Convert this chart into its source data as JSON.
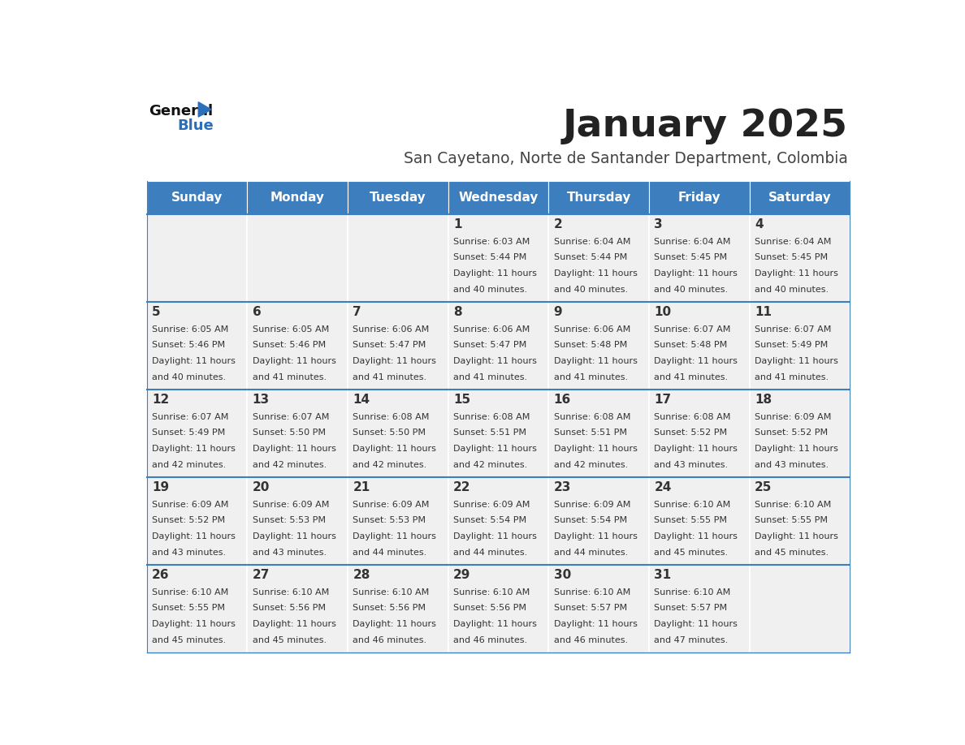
{
  "title": "January 2025",
  "subtitle": "San Cayetano, Norte de Santander Department, Colombia",
  "days_of_week": [
    "Sunday",
    "Monday",
    "Tuesday",
    "Wednesday",
    "Thursday",
    "Friday",
    "Saturday"
  ],
  "header_bg": "#3d7ebf",
  "header_text_color": "#ffffff",
  "cell_bg_light": "#f0f0f0",
  "cell_bg_white": "#ffffff",
  "cell_border_color": "#3d7ebf",
  "title_color": "#222222",
  "subtitle_color": "#444444",
  "text_color": "#333333",
  "calendar": [
    [
      null,
      null,
      null,
      {
        "day": 1,
        "sunrise": "6:03 AM",
        "sunset": "5:44 PM",
        "daylight_hours": 11,
        "daylight_minutes": 40
      },
      {
        "day": 2,
        "sunrise": "6:04 AM",
        "sunset": "5:44 PM",
        "daylight_hours": 11,
        "daylight_minutes": 40
      },
      {
        "day": 3,
        "sunrise": "6:04 AM",
        "sunset": "5:45 PM",
        "daylight_hours": 11,
        "daylight_minutes": 40
      },
      {
        "day": 4,
        "sunrise": "6:04 AM",
        "sunset": "5:45 PM",
        "daylight_hours": 11,
        "daylight_minutes": 40
      }
    ],
    [
      {
        "day": 5,
        "sunrise": "6:05 AM",
        "sunset": "5:46 PM",
        "daylight_hours": 11,
        "daylight_minutes": 40
      },
      {
        "day": 6,
        "sunrise": "6:05 AM",
        "sunset": "5:46 PM",
        "daylight_hours": 11,
        "daylight_minutes": 41
      },
      {
        "day": 7,
        "sunrise": "6:06 AM",
        "sunset": "5:47 PM",
        "daylight_hours": 11,
        "daylight_minutes": 41
      },
      {
        "day": 8,
        "sunrise": "6:06 AM",
        "sunset": "5:47 PM",
        "daylight_hours": 11,
        "daylight_minutes": 41
      },
      {
        "day": 9,
        "sunrise": "6:06 AM",
        "sunset": "5:48 PM",
        "daylight_hours": 11,
        "daylight_minutes": 41
      },
      {
        "day": 10,
        "sunrise": "6:07 AM",
        "sunset": "5:48 PM",
        "daylight_hours": 11,
        "daylight_minutes": 41
      },
      {
        "day": 11,
        "sunrise": "6:07 AM",
        "sunset": "5:49 PM",
        "daylight_hours": 11,
        "daylight_minutes": 41
      }
    ],
    [
      {
        "day": 12,
        "sunrise": "6:07 AM",
        "sunset": "5:49 PM",
        "daylight_hours": 11,
        "daylight_minutes": 42
      },
      {
        "day": 13,
        "sunrise": "6:07 AM",
        "sunset": "5:50 PM",
        "daylight_hours": 11,
        "daylight_minutes": 42
      },
      {
        "day": 14,
        "sunrise": "6:08 AM",
        "sunset": "5:50 PM",
        "daylight_hours": 11,
        "daylight_minutes": 42
      },
      {
        "day": 15,
        "sunrise": "6:08 AM",
        "sunset": "5:51 PM",
        "daylight_hours": 11,
        "daylight_minutes": 42
      },
      {
        "day": 16,
        "sunrise": "6:08 AM",
        "sunset": "5:51 PM",
        "daylight_hours": 11,
        "daylight_minutes": 42
      },
      {
        "day": 17,
        "sunrise": "6:08 AM",
        "sunset": "5:52 PM",
        "daylight_hours": 11,
        "daylight_minutes": 43
      },
      {
        "day": 18,
        "sunrise": "6:09 AM",
        "sunset": "5:52 PM",
        "daylight_hours": 11,
        "daylight_minutes": 43
      }
    ],
    [
      {
        "day": 19,
        "sunrise": "6:09 AM",
        "sunset": "5:52 PM",
        "daylight_hours": 11,
        "daylight_minutes": 43
      },
      {
        "day": 20,
        "sunrise": "6:09 AM",
        "sunset": "5:53 PM",
        "daylight_hours": 11,
        "daylight_minutes": 43
      },
      {
        "day": 21,
        "sunrise": "6:09 AM",
        "sunset": "5:53 PM",
        "daylight_hours": 11,
        "daylight_minutes": 44
      },
      {
        "day": 22,
        "sunrise": "6:09 AM",
        "sunset": "5:54 PM",
        "daylight_hours": 11,
        "daylight_minutes": 44
      },
      {
        "day": 23,
        "sunrise": "6:09 AM",
        "sunset": "5:54 PM",
        "daylight_hours": 11,
        "daylight_minutes": 44
      },
      {
        "day": 24,
        "sunrise": "6:10 AM",
        "sunset": "5:55 PM",
        "daylight_hours": 11,
        "daylight_minutes": 45
      },
      {
        "day": 25,
        "sunrise": "6:10 AM",
        "sunset": "5:55 PM",
        "daylight_hours": 11,
        "daylight_minutes": 45
      }
    ],
    [
      {
        "day": 26,
        "sunrise": "6:10 AM",
        "sunset": "5:55 PM",
        "daylight_hours": 11,
        "daylight_minutes": 45
      },
      {
        "day": 27,
        "sunrise": "6:10 AM",
        "sunset": "5:56 PM",
        "daylight_hours": 11,
        "daylight_minutes": 45
      },
      {
        "day": 28,
        "sunrise": "6:10 AM",
        "sunset": "5:56 PM",
        "daylight_hours": 11,
        "daylight_minutes": 46
      },
      {
        "day": 29,
        "sunrise": "6:10 AM",
        "sunset": "5:56 PM",
        "daylight_hours": 11,
        "daylight_minutes": 46
      },
      {
        "day": 30,
        "sunrise": "6:10 AM",
        "sunset": "5:57 PM",
        "daylight_hours": 11,
        "daylight_minutes": 46
      },
      {
        "day": 31,
        "sunrise": "6:10 AM",
        "sunset": "5:57 PM",
        "daylight_hours": 11,
        "daylight_minutes": 47
      },
      null
    ]
  ]
}
